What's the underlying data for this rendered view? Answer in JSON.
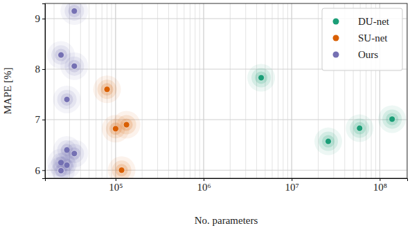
{
  "chart_data": {
    "type": "scatter",
    "x_label": "No. parameters",
    "y_label": "MAPE [%]",
    "log": "x",
    "grid": true,
    "legend": "upper right",
    "xlim": [
      15800,
      205000000
    ],
    "ylim": [
      5.84,
      9.3
    ],
    "xticks": [
      {
        "value": 100000,
        "label": "10⁵"
      },
      {
        "value": 1000000,
        "label": "10⁶"
      },
      {
        "value": 10000000,
        "label": "10⁷"
      },
      {
        "value": 100000000,
        "label": "10⁸"
      }
    ],
    "yticks": [
      6,
      7,
      8,
      9
    ],
    "series": [
      {
        "name": "DU-net",
        "color": "#1b9e77",
        "marker": "circle",
        "x": [
          4500000,
          26000000,
          59000000,
          138000000
        ],
        "values": [
          7.83,
          6.57,
          6.83,
          7.01
        ]
      },
      {
        "name": "SU-net",
        "color": "#d95f02",
        "marker": "circle",
        "x": [
          80000,
          100000,
          133000,
          117000
        ],
        "values": [
          7.6,
          6.82,
          6.9,
          6.0
        ]
      },
      {
        "name": "Ours",
        "color": "#7570b3",
        "marker": "circle",
        "x": [
          34000,
          24000,
          34000,
          28000,
          28000,
          34000,
          24000,
          28000,
          24000
        ],
        "values": [
          9.15,
          8.28,
          8.06,
          7.4,
          6.4,
          6.33,
          6.15,
          6.1,
          5.99
        ]
      }
    ]
  }
}
